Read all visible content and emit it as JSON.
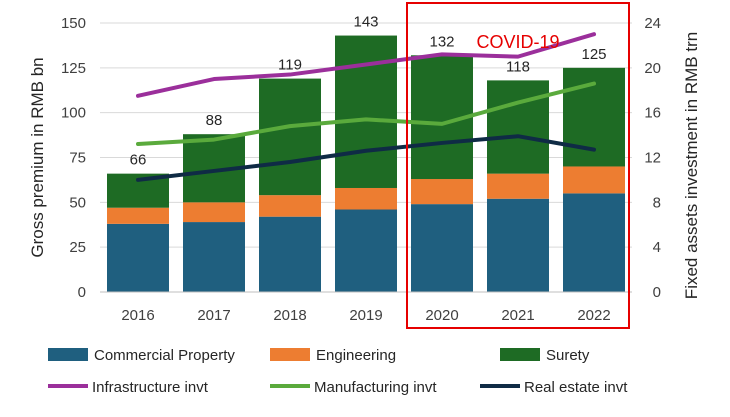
{
  "chart_data": {
    "type": "bar",
    "stacked": true,
    "categories": [
      "2016",
      "2017",
      "2018",
      "2019",
      "2020",
      "2021",
      "2022"
    ],
    "series": [
      {
        "name": "Commercial Property",
        "color": "#1f5f7f",
        "values": [
          38,
          39,
          42,
          46,
          49,
          52,
          55
        ]
      },
      {
        "name": "Engineering",
        "color": "#ed7d31",
        "values": [
          9,
          11,
          12,
          12,
          14,
          14,
          15
        ]
      },
      {
        "name": "Surety",
        "color": "#1e6b24",
        "values": [
          19,
          38,
          65,
          85,
          69,
          52,
          55
        ]
      }
    ],
    "totals": [
      66,
      88,
      119,
      143,
      132,
      118,
      125
    ],
    "total_labels": [
      "66",
      "88",
      "119",
      "143",
      "132",
      "118",
      "125"
    ],
    "line_series": [
      {
        "name": "Infrastructure invt",
        "color": "#9b2f9b",
        "values": [
          17.5,
          19.0,
          19.4,
          20.3,
          21.2,
          21.0,
          23.0
        ]
      },
      {
        "name": "Manufacturing invt",
        "color": "#5aaa3c",
        "values": [
          13.2,
          13.6,
          14.8,
          15.4,
          15.0,
          16.9,
          18.6
        ]
      },
      {
        "name": "Real estate invt",
        "color": "#0f2b45",
        "values": [
          10.0,
          10.8,
          11.6,
          12.6,
          13.3,
          13.9,
          12.7
        ]
      }
    ],
    "ylabel": "Gross premium in RMB bn",
    "ylim": [
      0,
      150
    ],
    "yticks": [
      "0",
      "25",
      "50",
      "75",
      "100",
      "125",
      "150"
    ],
    "y2label": "Fixed assets investment in RMB trn",
    "y2lim": [
      0,
      24
    ],
    "y2ticks": [
      "0",
      "4",
      "8",
      "12",
      "16",
      "20",
      "24"
    ],
    "annotation": {
      "text": "COVID-19",
      "color": "#e60000",
      "highlight_categories": [
        "2020",
        "2021",
        "2022"
      ]
    },
    "legend": "bottom",
    "grid": true
  }
}
